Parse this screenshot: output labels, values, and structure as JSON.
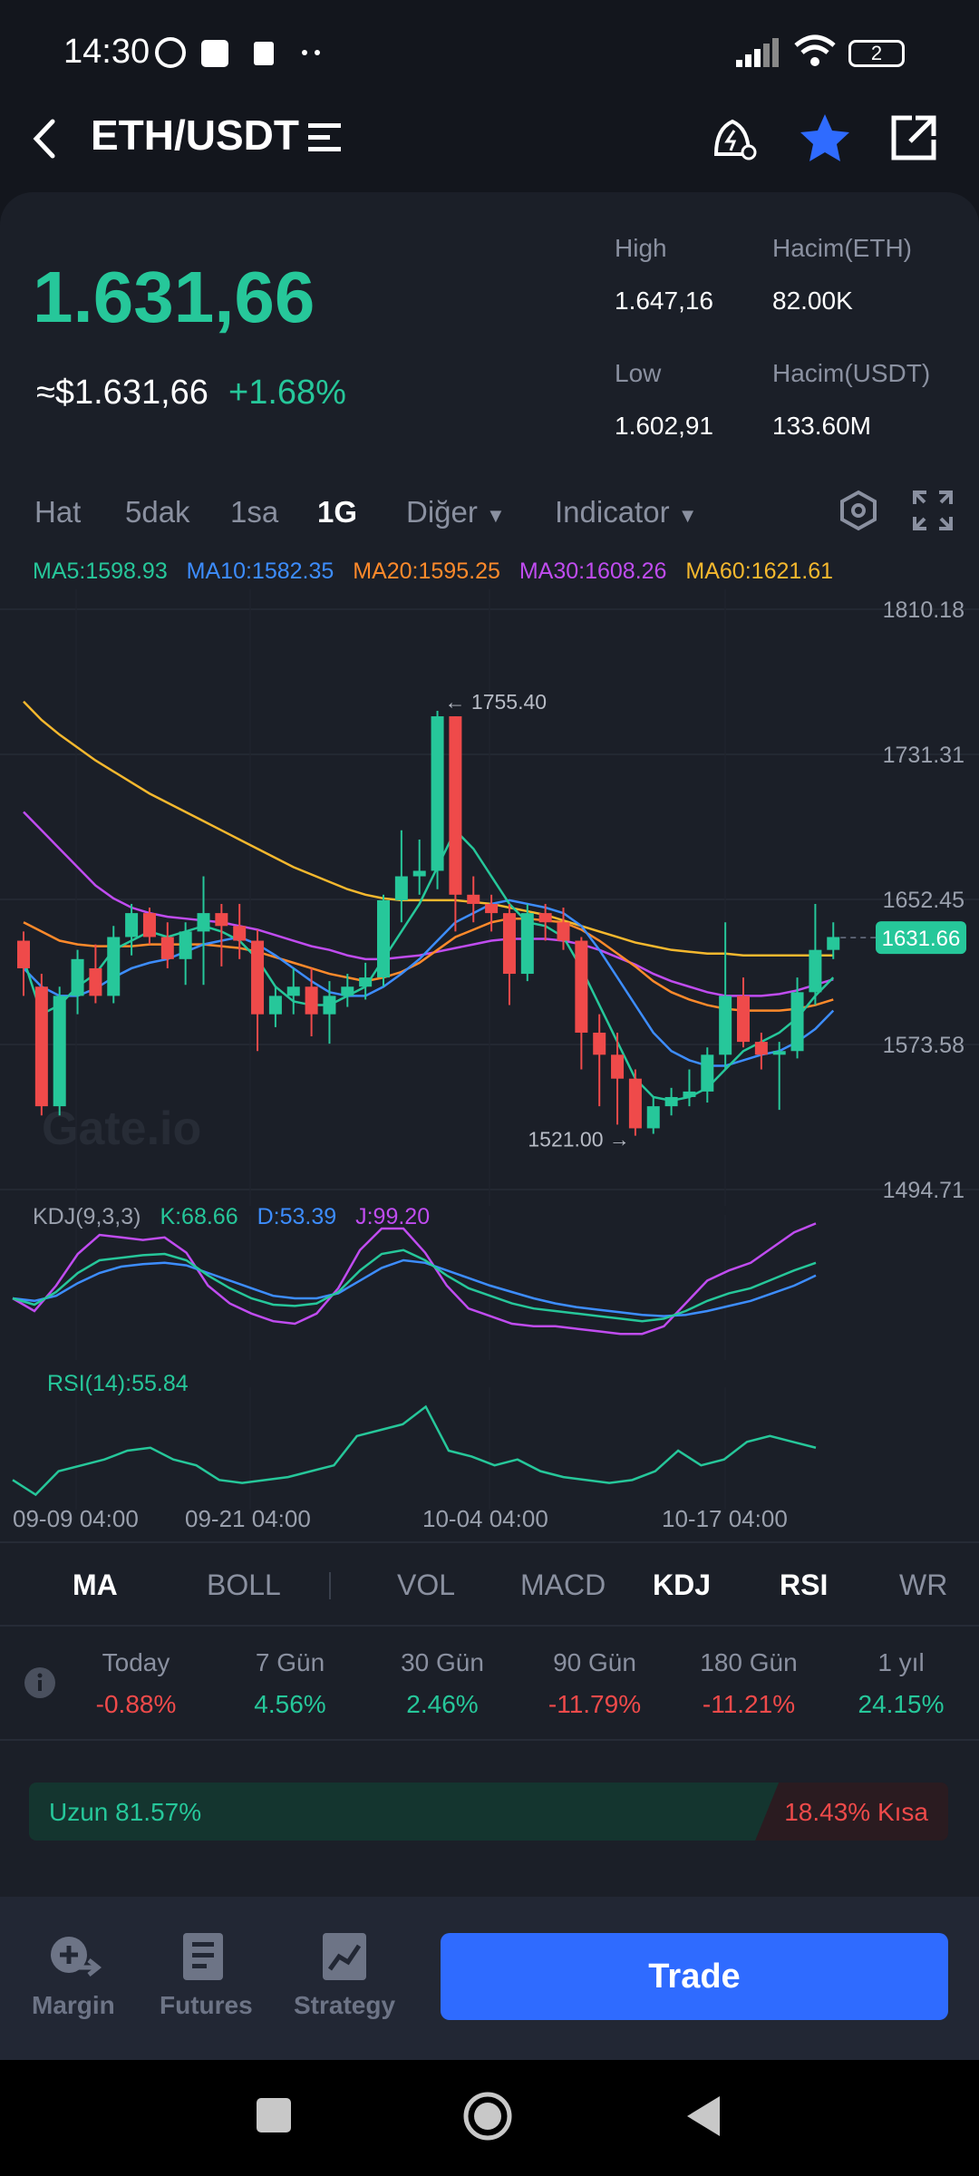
{
  "status_bar": {
    "time": "14:30",
    "battery": "2"
  },
  "header": {
    "pair": "ETH/USDT"
  },
  "price": {
    "last": "1.631,66",
    "usd": "≈$1.631,66",
    "change": "+1.68%",
    "high_label": "High",
    "high": "1.647,16",
    "low_label": "Low",
    "low": "1.602,91",
    "vol_base_label": "Hacim(ETH)",
    "vol_base": "82.00K",
    "vol_quote_label": "Hacim(USDT)",
    "vol_quote": "133.60M"
  },
  "timeframes": {
    "line": "Hat",
    "m5": "5dak",
    "h1": "1sa",
    "d1": "1G",
    "more": "Diğer",
    "indicator": "Indicator"
  },
  "ma_legend": {
    "ma5": "MA5:1598.93",
    "ma10": "MA10:1582.35",
    "ma20": "MA20:1595.25",
    "ma30": "MA30:1608.26",
    "ma60": "MA60:1621.61"
  },
  "colors": {
    "up": "#26c79a",
    "down": "#ef4a4a",
    "ma5": "#26c79a",
    "ma10": "#3d8dff",
    "ma20": "#ff8a2b",
    "ma30": "#c04cf0",
    "ma60": "#f5b82e",
    "accent": "#2f6bff"
  },
  "chart_data": {
    "type": "candlestick",
    "y_axis_labels": [
      "1810.18",
      "1731.31",
      "1652.45",
      "1573.58",
      "1494.71"
    ],
    "ylim": [
      1494.71,
      1810.18
    ],
    "x_axis_labels": [
      "09-09 04:00",
      "09-21 04:00",
      "10-04 04:00",
      "10-17 04:00"
    ],
    "current_price_tag": "1631.66",
    "max_annotation": "← 1755.40",
    "min_annotation": "1521.00 →",
    "watermark": "Gate.io",
    "candles": [
      [
        1630,
        1635,
        1600,
        1615
      ],
      [
        1605,
        1612,
        1535,
        1540
      ],
      [
        1540,
        1605,
        1535,
        1600
      ],
      [
        1600,
        1625,
        1590,
        1620
      ],
      [
        1615,
        1628,
        1596,
        1600
      ],
      [
        1600,
        1638,
        1596,
        1632
      ],
      [
        1632,
        1650,
        1622,
        1645
      ],
      [
        1645,
        1648,
        1628,
        1632
      ],
      [
        1632,
        1640,
        1615,
        1620
      ],
      [
        1620,
        1640,
        1606,
        1635
      ],
      [
        1635,
        1665,
        1606,
        1645
      ],
      [
        1645,
        1650,
        1616,
        1638
      ],
      [
        1638,
        1650,
        1620,
        1630
      ],
      [
        1630,
        1636,
        1570,
        1590
      ],
      [
        1590,
        1605,
        1583,
        1600
      ],
      [
        1600,
        1615,
        1590,
        1605
      ],
      [
        1605,
        1615,
        1578,
        1590
      ],
      [
        1590,
        1608,
        1574,
        1600
      ],
      [
        1600,
        1612,
        1594,
        1605
      ],
      [
        1605,
        1618,
        1598,
        1610
      ],
      [
        1610,
        1655,
        1605,
        1652
      ],
      [
        1652,
        1690,
        1640,
        1665
      ],
      [
        1665,
        1685,
        1655,
        1668
      ],
      [
        1668,
        1755,
        1658,
        1752
      ],
      [
        1752,
        1752,
        1635,
        1655
      ],
      [
        1655,
        1665,
        1640,
        1650
      ],
      [
        1650,
        1655,
        1635,
        1645
      ],
      [
        1645,
        1650,
        1595,
        1612
      ],
      [
        1612,
        1650,
        1608,
        1645
      ],
      [
        1645,
        1650,
        1630,
        1640
      ],
      [
        1640,
        1648,
        1625,
        1630
      ],
      [
        1630,
        1632,
        1560,
        1580
      ],
      [
        1580,
        1590,
        1540,
        1568
      ],
      [
        1568,
        1580,
        1530,
        1555
      ],
      [
        1555,
        1560,
        1524,
        1528
      ],
      [
        1528,
        1545,
        1525,
        1540
      ],
      [
        1540,
        1550,
        1535,
        1545
      ],
      [
        1545,
        1560,
        1540,
        1548
      ],
      [
        1548,
        1572,
        1542,
        1568
      ],
      [
        1568,
        1640,
        1560,
        1600
      ],
      [
        1600,
        1610,
        1572,
        1575
      ],
      [
        1575,
        1580,
        1560,
        1568
      ],
      [
        1568,
        1575,
        1538,
        1570
      ],
      [
        1570,
        1610,
        1566,
        1602
      ],
      [
        1602,
        1650,
        1595,
        1625
      ],
      [
        1625,
        1640,
        1620,
        1632
      ]
    ],
    "ma_series": {
      "MA5": [
        1620,
        1590,
        1595,
        1605,
        1612,
        1625,
        1630,
        1635,
        1632,
        1635,
        1638,
        1635,
        1630,
        1620,
        1605,
        1597,
        1595,
        1595,
        1600,
        1605,
        1620,
        1635,
        1650,
        1670,
        1690,
        1680,
        1665,
        1650,
        1640,
        1638,
        1632,
        1615,
        1595,
        1575,
        1555,
        1545,
        1543,
        1545,
        1550,
        1560,
        1570,
        1575,
        1580,
        1588,
        1600,
        1610
      ],
      "MA10": [
        1615,
        1605,
        1600,
        1600,
        1604,
        1610,
        1615,
        1618,
        1620,
        1624,
        1628,
        1630,
        1632,
        1628,
        1622,
        1615,
        1608,
        1602,
        1600,
        1600,
        1605,
        1612,
        1620,
        1630,
        1640,
        1645,
        1650,
        1652,
        1650,
        1648,
        1645,
        1638,
        1625,
        1610,
        1595,
        1580,
        1570,
        1565,
        1562,
        1562,
        1565,
        1568,
        1570,
        1575,
        1582,
        1592
      ],
      "MA20": [
        1640,
        1635,
        1630,
        1628,
        1627,
        1627,
        1627,
        1628,
        1628,
        1628,
        1628,
        1627,
        1626,
        1624,
        1621,
        1618,
        1615,
        1612,
        1610,
        1608,
        1610,
        1613,
        1618,
        1625,
        1632,
        1636,
        1640,
        1642,
        1642,
        1641,
        1640,
        1636,
        1630,
        1623,
        1616,
        1608,
        1602,
        1598,
        1595,
        1593,
        1592,
        1592,
        1592,
        1593,
        1595,
        1598
      ],
      "MA30": [
        1700,
        1690,
        1680,
        1670,
        1660,
        1653,
        1648,
        1645,
        1643,
        1642,
        1641,
        1640,
        1638,
        1636,
        1633,
        1630,
        1627,
        1625,
        1622,
        1620,
        1620,
        1621,
        1622,
        1624,
        1626,
        1628,
        1630,
        1631,
        1631,
        1631,
        1630,
        1628,
        1625,
        1621,
        1617,
        1612,
        1608,
        1605,
        1602,
        1600,
        1600,
        1600,
        1601,
        1603,
        1606,
        1609
      ],
      "MA60": [
        1760,
        1750,
        1742,
        1735,
        1728,
        1722,
        1716,
        1710,
        1705,
        1700,
        1695,
        1690,
        1685,
        1680,
        1675,
        1670,
        1666,
        1662,
        1658,
        1655,
        1653,
        1652,
        1652,
        1652,
        1652,
        1651,
        1650,
        1648,
        1646,
        1644,
        1641,
        1638,
        1635,
        1632,
        1629,
        1627,
        1625,
        1624,
        1623,
        1623,
        1622,
        1622,
        1622,
        1622,
        1622,
        1622
      ]
    },
    "kdj": {
      "label": "KDJ(9,3,3)",
      "k_label": "K:68.66",
      "d_label": "D:53.39",
      "j_label": "J:99.20",
      "K": [
        40,
        35,
        45,
        60,
        70,
        72,
        74,
        75,
        70,
        58,
        48,
        40,
        35,
        34,
        36,
        45,
        62,
        75,
        78,
        70,
        58,
        48,
        42,
        36,
        32,
        30,
        28,
        26,
        24,
        22,
        24,
        30,
        38,
        44,
        48,
        55,
        62,
        68
      ],
      "D": [
        40,
        38,
        42,
        52,
        60,
        65,
        67,
        68,
        66,
        60,
        54,
        48,
        42,
        40,
        40,
        44,
        54,
        64,
        70,
        68,
        62,
        56,
        50,
        45,
        40,
        36,
        33,
        31,
        29,
        27,
        26,
        27,
        30,
        34,
        38,
        44,
        50,
        58
      ],
      "J": [
        40,
        30,
        50,
        75,
        90,
        88,
        86,
        88,
        76,
        50,
        36,
        28,
        22,
        20,
        28,
        48,
        78,
        95,
        95,
        76,
        50,
        32,
        26,
        20,
        18,
        18,
        16,
        14,
        12,
        12,
        18,
        36,
        54,
        62,
        68,
        80,
        92,
        99
      ]
    },
    "rsi": {
      "label": "RSI(14):55.84",
      "values": [
        45,
        40,
        48,
        50,
        52,
        55,
        56,
        52,
        50,
        45,
        44,
        45,
        46,
        48,
        50,
        60,
        62,
        64,
        70,
        55,
        53,
        50,
        52,
        48,
        46,
        45,
        44,
        45,
        48,
        55,
        50,
        52,
        58,
        60,
        58,
        56
      ]
    }
  },
  "indicator_tabs": [
    "MA",
    "BOLL",
    "VOL",
    "MACD",
    "KDJ",
    "RSI",
    "WR"
  ],
  "performance": [
    {
      "label": "Today",
      "value": "-0.88%",
      "dir": "down"
    },
    {
      "label": "7 Gün",
      "value": "4.56%",
      "dir": "up"
    },
    {
      "label": "30 Gün",
      "value": "2.46%",
      "dir": "up"
    },
    {
      "label": "90 Gün",
      "value": "-11.79%",
      "dir": "down"
    },
    {
      "label": "180 Gün",
      "value": "-11.21%",
      "dir": "down"
    },
    {
      "label": "1 yıl",
      "value": "24.15%",
      "dir": "up"
    }
  ],
  "long_short": {
    "long": "Uzun 81.57%",
    "short": "18.43% Kısa",
    "long_ratio": 0.8157
  },
  "bottom_nav": {
    "margin": "Margin",
    "futures": "Futures",
    "strategy": "Strategy",
    "trade": "Trade"
  }
}
